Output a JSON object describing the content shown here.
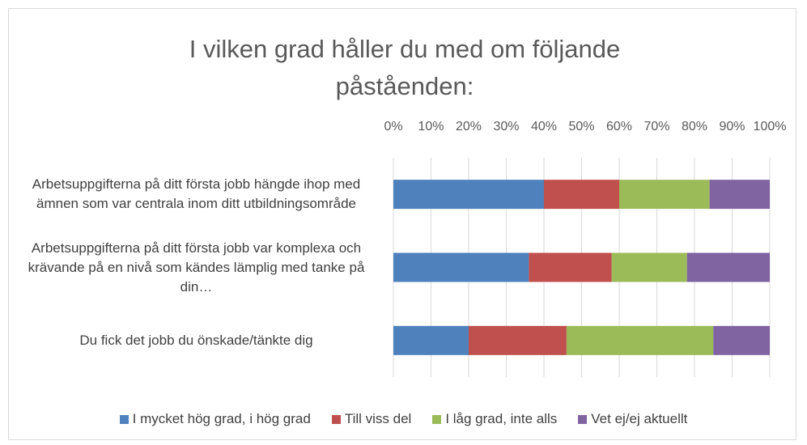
{
  "chart_data": {
    "type": "stacked_barh",
    "title": "I vilken grad håller du med om följande påståenden:",
    "categories": [
      "Arbetsuppgifterna på ditt första jobb hängde ihop med ämnen som var centrala inom ditt utbildningsområde",
      "Arbetsuppgifterna på ditt första jobb var komplexa och krävande på en nivå som kändes lämplig med tanke på din…",
      "Du fick det jobb du önskade/tänkte dig"
    ],
    "series": [
      {
        "name": "I mycket hög grad, i hög grad",
        "color": "#4f81bd",
        "values": [
          40,
          36,
          20
        ]
      },
      {
        "name": "Till viss del",
        "color": "#c0504d",
        "values": [
          20,
          22,
          26
        ]
      },
      {
        "name": "I låg grad, inte alls",
        "color": "#9bbb59",
        "values": [
          24,
          20,
          39
        ]
      },
      {
        "name": "Vet ej/ej aktuellt",
        "color": "#8064a2",
        "values": [
          16,
          22,
          15
        ]
      }
    ],
    "xlim": [
      0,
      100
    ],
    "xticks": [
      {
        "value": 0,
        "label": "0%"
      },
      {
        "value": 10,
        "label": "10%"
      },
      {
        "value": 20,
        "label": "20%"
      },
      {
        "value": 30,
        "label": "30%"
      },
      {
        "value": 40,
        "label": "40%"
      },
      {
        "value": 50,
        "label": "50%"
      },
      {
        "value": 60,
        "label": "60%"
      },
      {
        "value": 70,
        "label": "70%"
      },
      {
        "value": 80,
        "label": "80%"
      },
      {
        "value": 90,
        "label": "90%"
      },
      {
        "value": 100,
        "label": "100%"
      }
    ],
    "grid": true
  }
}
